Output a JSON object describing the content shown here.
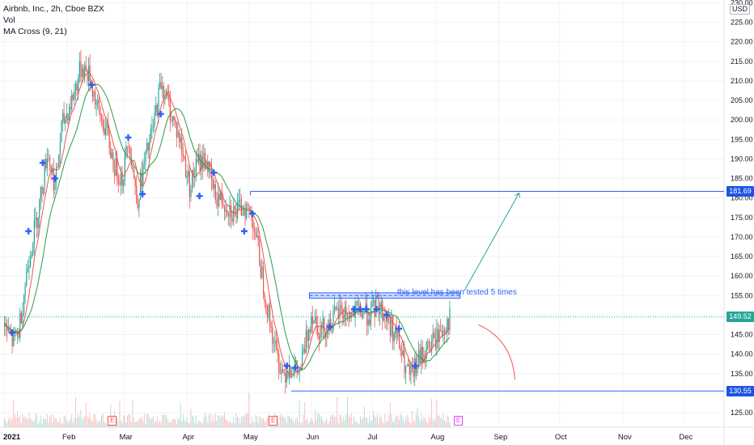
{
  "legend": {
    "symbol": "Airbnb, Inc., 2h, Cboe BZX",
    "vol": "Vol",
    "ma": "MA Cross (9, 21)"
  },
  "currency": "USD",
  "annotation_text": "this level has been tested 5 times",
  "price_tags": {
    "resistance_target": "181.69",
    "current_price": "149.52",
    "support": "130.55"
  },
  "earnings_markers": [
    "E",
    "E",
    "E"
  ],
  "colors": {
    "up": "#26a69a",
    "down": "#ef5350",
    "fast_ma": "#e8584f",
    "slow_ma": "#2a9b4a",
    "level": "#2962ff",
    "target_arrow": "#26a69a",
    "down_arc": "#ef5350",
    "cross_marker": "#2962ff",
    "price_tag_current": "#26a69a",
    "price_tag_level": "#1e53e5",
    "earnings_red": "#ef5350",
    "earnings_purple": "#e040fb"
  },
  "chart_data": {
    "type": "candlestick",
    "title": "Airbnb, Inc., 2h, Cboe BZX",
    "indicators": [
      "Vol",
      "MA Cross (9, 21)"
    ],
    "x_ticks": [
      "2021",
      "Feb",
      "Mar",
      "Apr",
      "May",
      "Jun",
      "Jul",
      "Aug",
      "Sep",
      "Oct",
      "Nov",
      "Dec"
    ],
    "y_ticks": [
      125,
      130,
      135,
      140,
      145,
      150,
      155,
      160,
      165,
      170,
      175,
      180,
      185,
      190,
      195,
      200,
      205,
      210,
      215,
      220,
      225,
      230
    ],
    "ylim": [
      121,
      230
    ],
    "price_path": [
      {
        "date": "2021-01-01",
        "close": 147
      },
      {
        "date": "2021-01-05",
        "close": 143
      },
      {
        "date": "2021-01-08",
        "close": 146
      },
      {
        "date": "2021-01-13",
        "close": 165
      },
      {
        "date": "2021-01-18",
        "close": 178
      },
      {
        "date": "2021-01-22",
        "close": 192
      },
      {
        "date": "2021-01-26",
        "close": 183
      },
      {
        "date": "2021-01-29",
        "close": 198
      },
      {
        "date": "2021-02-03",
        "close": 205
      },
      {
        "date": "2021-02-08",
        "close": 214
      },
      {
        "date": "2021-02-12",
        "close": 211
      },
      {
        "date": "2021-02-16",
        "close": 202
      },
      {
        "date": "2021-02-20",
        "close": 197
      },
      {
        "date": "2021-02-24",
        "close": 188
      },
      {
        "date": "2021-02-28",
        "close": 185
      },
      {
        "date": "2021-03-03",
        "close": 196
      },
      {
        "date": "2021-03-07",
        "close": 179
      },
      {
        "date": "2021-03-10",
        "close": 187
      },
      {
        "date": "2021-03-15",
        "close": 198
      },
      {
        "date": "2021-03-19",
        "close": 210
      },
      {
        "date": "2021-03-23",
        "close": 203
      },
      {
        "date": "2021-03-28",
        "close": 195
      },
      {
        "date": "2021-04-02",
        "close": 183
      },
      {
        "date": "2021-04-06",
        "close": 189
      },
      {
        "date": "2021-04-10",
        "close": 190
      },
      {
        "date": "2021-04-14",
        "close": 181
      },
      {
        "date": "2021-04-19",
        "close": 179
      },
      {
        "date": "2021-04-24",
        "close": 176
      },
      {
        "date": "2021-04-29",
        "close": 178
      },
      {
        "date": "2021-05-03",
        "close": 175
      },
      {
        "date": "2021-05-07",
        "close": 162
      },
      {
        "date": "2021-05-11",
        "close": 149
      },
      {
        "date": "2021-05-15",
        "close": 139
      },
      {
        "date": "2021-05-18",
        "close": 135
      },
      {
        "date": "2021-05-21",
        "close": 137
      },
      {
        "date": "2021-05-26",
        "close": 135
      },
      {
        "date": "2021-06-01",
        "close": 151
      },
      {
        "date": "2021-06-05",
        "close": 146
      },
      {
        "date": "2021-06-10",
        "close": 148
      },
      {
        "date": "2021-06-15",
        "close": 151
      },
      {
        "date": "2021-06-20",
        "close": 150
      },
      {
        "date": "2021-06-25",
        "close": 151
      },
      {
        "date": "2021-06-30",
        "close": 150
      },
      {
        "date": "2021-07-03",
        "close": 153
      },
      {
        "date": "2021-07-08",
        "close": 149
      },
      {
        "date": "2021-07-13",
        "close": 144
      },
      {
        "date": "2021-07-17",
        "close": 136
      },
      {
        "date": "2021-07-20",
        "close": 134
      },
      {
        "date": "2021-07-23",
        "close": 138
      },
      {
        "date": "2021-07-27",
        "close": 141
      },
      {
        "date": "2021-08-01",
        "close": 144
      },
      {
        "date": "2021-08-05",
        "close": 147
      },
      {
        "date": "2021-08-08",
        "close": 149.5
      }
    ],
    "cross_markers": [
      {
        "date": "2021-01-05",
        "price": 145.5
      },
      {
        "date": "2021-01-13",
        "price": 171.5
      },
      {
        "date": "2021-01-20",
        "price": 189
      },
      {
        "date": "2021-01-26",
        "price": 185
      },
      {
        "date": "2021-02-13",
        "price": 209
      },
      {
        "date": "2021-03-03",
        "price": 195.5
      },
      {
        "date": "2021-03-10",
        "price": 181
      },
      {
        "date": "2021-03-19",
        "price": 201.5
      },
      {
        "date": "2021-04-07",
        "price": 180.5
      },
      {
        "date": "2021-04-14",
        "price": 186.5
      },
      {
        "date": "2021-04-29",
        "price": 171.5
      },
      {
        "date": "2021-05-03",
        "price": 176
      },
      {
        "date": "2021-05-20",
        "price": 137
      },
      {
        "date": "2021-05-24",
        "price": 136.5
      },
      {
        "date": "2021-06-10",
        "price": 147
      },
      {
        "date": "2021-06-22",
        "price": 151.5
      },
      {
        "date": "2021-06-25",
        "price": 151.5
      },
      {
        "date": "2021-06-28",
        "price": 151.5
      },
      {
        "date": "2021-07-03",
        "price": 151.5
      },
      {
        "date": "2021-07-08",
        "price": 150
      },
      {
        "date": "2021-07-14",
        "price": 146.5
      },
      {
        "date": "2021-07-22",
        "price": 137
      }
    ],
    "levels": [
      {
        "label": "181.69",
        "price": 181.69
      },
      {
        "label": "149.52",
        "price": 149.52
      },
      {
        "label": "130.55",
        "price": 130.55
      }
    ],
    "resistance_zone": {
      "low": 154.3,
      "high": 155.7
    },
    "annotation": "this level has been tested 5 times",
    "scenarios": [
      {
        "name": "up",
        "to_price": 181.69
      },
      {
        "name": "down",
        "to_price": 131
      }
    ],
    "earnings_dates": [
      "2021-02-23",
      "2021-05-13",
      "2021-08-12"
    ]
  }
}
